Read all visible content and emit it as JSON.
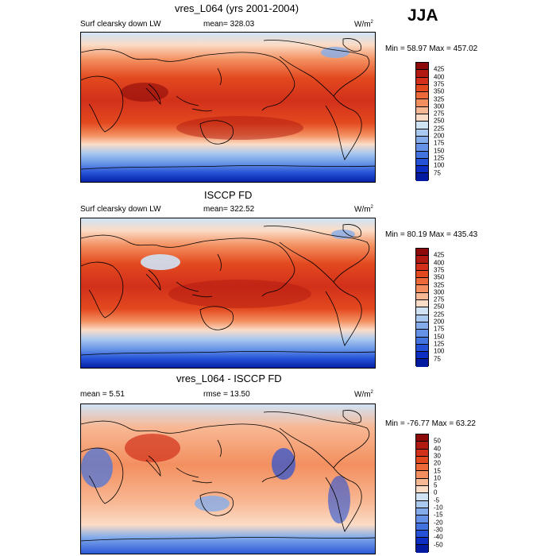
{
  "season": "JJA",
  "panels": [
    {
      "title": "vres_L064 (yrs 2001-2004)",
      "left_label": "Surf clearsky down LW",
      "center_label": "mean= 328.03",
      "units": "W/m",
      "units_sup": "2",
      "minmax": "Min =  58.97 Max = 457.02",
      "colorbar_labels": [
        "425",
        "400",
        "375",
        "350",
        "325",
        "300",
        "275",
        "250",
        "225",
        "200",
        "175",
        "150",
        "125",
        "100",
        "75"
      ],
      "colorbar_colors": [
        "#8c0a0a",
        "#b11a10",
        "#d2301a",
        "#e3491f",
        "#ec6a3a",
        "#f38f5f",
        "#f8b894",
        "#fbdcc6",
        "#cfe3f5",
        "#a9c9ef",
        "#84acea",
        "#6592e6",
        "#4373df",
        "#2451d6",
        "#0c2ec3",
        "#021aa0"
      ]
    },
    {
      "title": "ISCCP FD",
      "left_label": "Surf clearsky down LW",
      "center_label": "mean= 322.52",
      "units": "W/m",
      "units_sup": "2",
      "minmax": "Min =  80.19 Max = 435.43",
      "colorbar_labels": [
        "425",
        "400",
        "375",
        "350",
        "325",
        "300",
        "275",
        "250",
        "225",
        "200",
        "175",
        "150",
        "125",
        "100",
        "75"
      ],
      "colorbar_colors": [
        "#8c0a0a",
        "#b11a10",
        "#d2301a",
        "#e3491f",
        "#ec6a3a",
        "#f38f5f",
        "#f8b894",
        "#fbdcc6",
        "#cfe3f5",
        "#a9c9ef",
        "#84acea",
        "#6592e6",
        "#4373df",
        "#2451d6",
        "#0c2ec3",
        "#021aa0"
      ]
    },
    {
      "title": "vres_L064 - ISCCP FD",
      "left_label": "mean =   5.51",
      "center_label": "rmse =  13.50",
      "units": "W/m",
      "units_sup": "2",
      "minmax": "Min = -76.77 Max =  63.22",
      "colorbar_labels": [
        "50",
        "40",
        "30",
        "20",
        "15",
        "10",
        "5",
        "0",
        "-5",
        "-10",
        "-15",
        "-20",
        "-30",
        "-40",
        "-50"
      ],
      "colorbar_colors": [
        "#8c0a0a",
        "#b11a10",
        "#d2301a",
        "#e3491f",
        "#ec6a3a",
        "#f38f5f",
        "#f8b894",
        "#fbdcc6",
        "#cfe3f5",
        "#a9c9ef",
        "#84acea",
        "#6592e6",
        "#4373df",
        "#2451d6",
        "#0c2ec3",
        "#021aa0"
      ]
    }
  ]
}
